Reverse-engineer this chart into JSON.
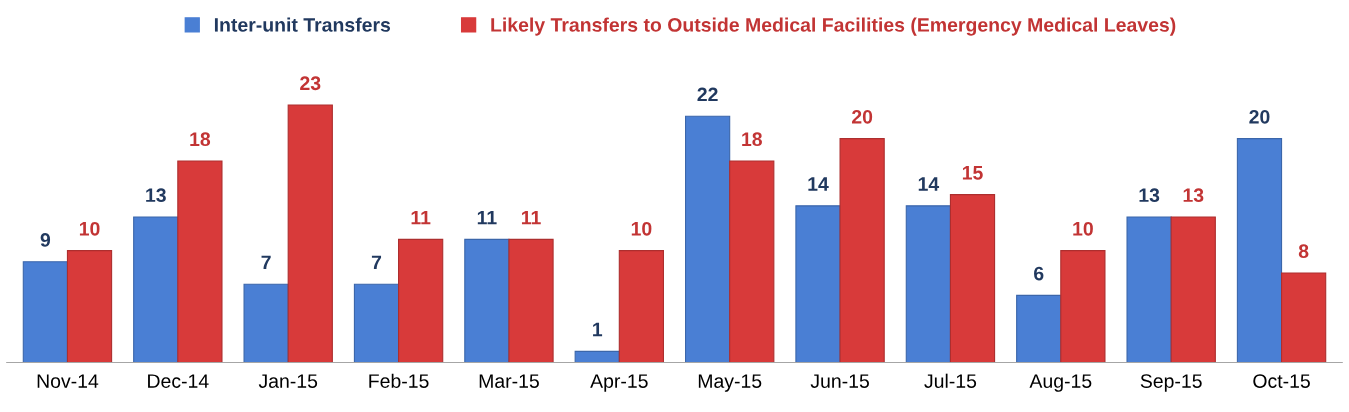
{
  "chart_data": {
    "type": "bar",
    "categories": [
      "Nov-14",
      "Dec-14",
      "Jan-15",
      "Feb-15",
      "Mar-15",
      "Apr-15",
      "May-15",
      "Jun-15",
      "Jul-15",
      "Aug-15",
      "Sep-15",
      "Oct-15"
    ],
    "series": [
      {
        "name": "Inter-unit Transfers",
        "color": "#4a7fd4",
        "values": [
          9,
          13,
          7,
          7,
          11,
          1,
          22,
          14,
          14,
          6,
          13,
          20
        ]
      },
      {
        "name": "Likely Transfers to Outside Medical Facilities (Emergency Medical Leaves)",
        "color": "#d83a3a",
        "values": [
          10,
          18,
          23,
          11,
          11,
          10,
          18,
          20,
          15,
          10,
          13,
          8
        ]
      }
    ],
    "data_labels": true,
    "legend": "top",
    "grid": false,
    "tick_labels": "x"
  }
}
